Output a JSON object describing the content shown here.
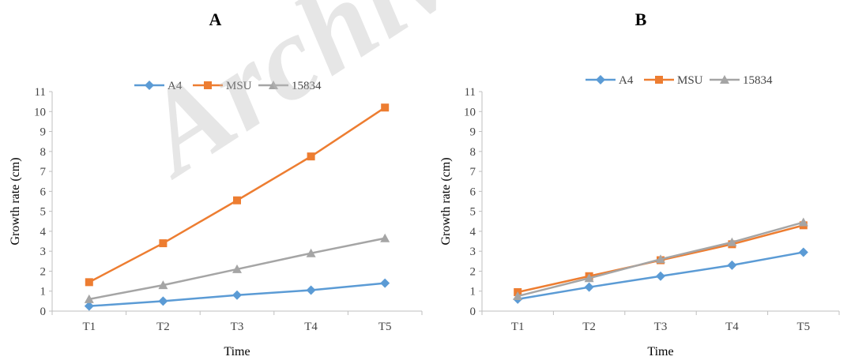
{
  "watermark": "Archive",
  "chart_data": [
    {
      "type": "line",
      "title": "A",
      "xlabel": "Time",
      "ylabel": "Growth rate (cm)",
      "categories": [
        "T1",
        "T2",
        "T3",
        "T4",
        "T5"
      ],
      "ylim": [
        0,
        11
      ],
      "yticks": [
        0,
        1,
        2,
        3,
        4,
        5,
        6,
        7,
        8,
        9,
        10,
        11
      ],
      "legend_position": "top-center",
      "grid": false,
      "series": [
        {
          "name": "A4",
          "values": [
            0.25,
            0.5,
            0.8,
            1.05,
            1.4
          ],
          "color": "#5B9BD5",
          "marker": "diamond"
        },
        {
          "name": "MSU",
          "values": [
            1.45,
            3.4,
            5.55,
            7.75,
            10.2
          ],
          "color": "#ED7D31",
          "marker": "square"
        },
        {
          "name": "15834",
          "values": [
            0.6,
            1.3,
            2.1,
            2.9,
            3.65
          ],
          "color": "#A5A5A5",
          "marker": "triangle"
        }
      ]
    },
    {
      "type": "line",
      "title": "B",
      "xlabel": "Time",
      "ylabel": "Growth rate (cm)",
      "categories": [
        "T1",
        "T2",
        "T3",
        "T4",
        "T5"
      ],
      "ylim": [
        0,
        11
      ],
      "yticks": [
        0,
        1,
        2,
        3,
        4,
        5,
        6,
        7,
        8,
        9,
        10,
        11
      ],
      "legend_position": "top-center",
      "grid": false,
      "series": [
        {
          "name": "A4",
          "values": [
            0.6,
            1.2,
            1.75,
            2.3,
            2.95
          ],
          "color": "#5B9BD5",
          "marker": "diamond"
        },
        {
          "name": "MSU",
          "values": [
            0.95,
            1.75,
            2.55,
            3.35,
            4.3
          ],
          "color": "#ED7D31",
          "marker": "square"
        },
        {
          "name": "15834",
          "values": [
            0.75,
            1.65,
            2.6,
            3.45,
            4.45
          ],
          "color": "#A5A5A5",
          "marker": "triangle"
        }
      ]
    }
  ]
}
